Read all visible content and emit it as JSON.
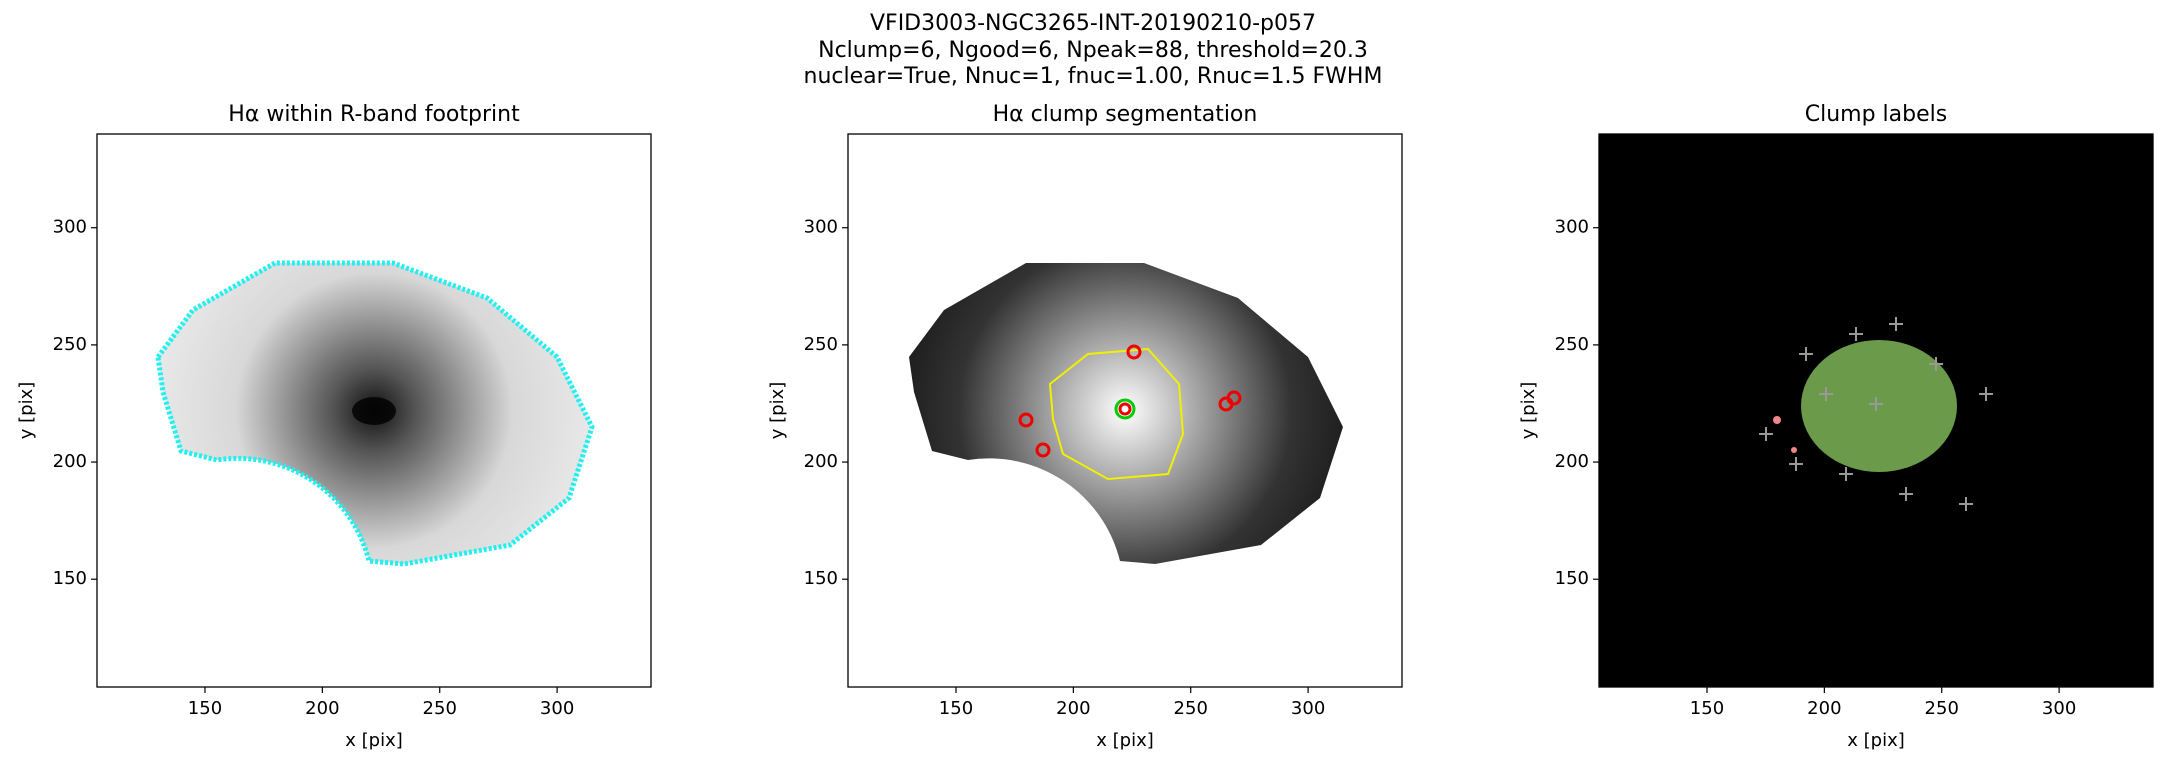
{
  "suptitle": [
    "VFID3003-NGC3265-INT-20190210-p057",
    "Nclump=6, Ngood=6, Npeak=88, threshold=20.3",
    "nuclear=True, Nnuc=1, fnuc=1.00, Rnuc=1.5 FWHM"
  ],
  "chart_data": [
    {
      "type": "image",
      "title": "Hα within R-band footprint",
      "xlabel": "x [pix]",
      "ylabel": "y [pix]",
      "xlim": [
        104,
        340
      ],
      "ylim": [
        104,
        340
      ],
      "xticks": [
        150,
        200,
        250,
        300
      ],
      "yticks": [
        150,
        200,
        250,
        300
      ]
    },
    {
      "type": "image",
      "title": "Hα clump segmentation",
      "xlabel": "x [pix]",
      "ylabel": "y [pix]",
      "xlim": [
        104,
        340
      ],
      "ylim": [
        104,
        340
      ],
      "xticks": [
        150,
        200,
        250,
        300
      ],
      "yticks": [
        150,
        200,
        250,
        300
      ]
    },
    {
      "type": "image",
      "title": "Clump labels",
      "xlabel": "x [pix]",
      "ylabel": "y [pix]",
      "xlim": [
        104,
        340
      ],
      "ylim": [
        104,
        340
      ],
      "xticks": [
        150,
        200,
        250,
        300
      ],
      "yticks": [
        150,
        200,
        250,
        300
      ]
    }
  ]
}
